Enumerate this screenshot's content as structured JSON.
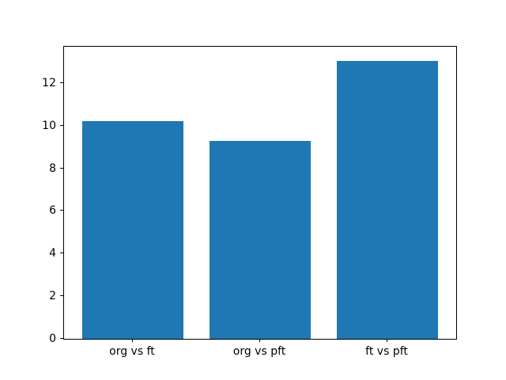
{
  "chart_data": {
    "type": "bar",
    "categories": [
      "org vs ft",
      "org vs pft",
      "ft vs pft"
    ],
    "values": [
      10.2,
      9.3,
      13.05
    ],
    "title": "",
    "xlabel": "",
    "ylabel": "",
    "ylim": [
      0,
      13.7
    ],
    "xlim": [
      -0.54,
      2.54
    ],
    "yticks": [
      0,
      2,
      4,
      6,
      8,
      10,
      12
    ],
    "bar_width_fraction": 0.8,
    "bar_color": "#1f77b4",
    "background_color": "#ffffff",
    "spine_color": "#000000",
    "grid": false,
    "legend": null
  }
}
